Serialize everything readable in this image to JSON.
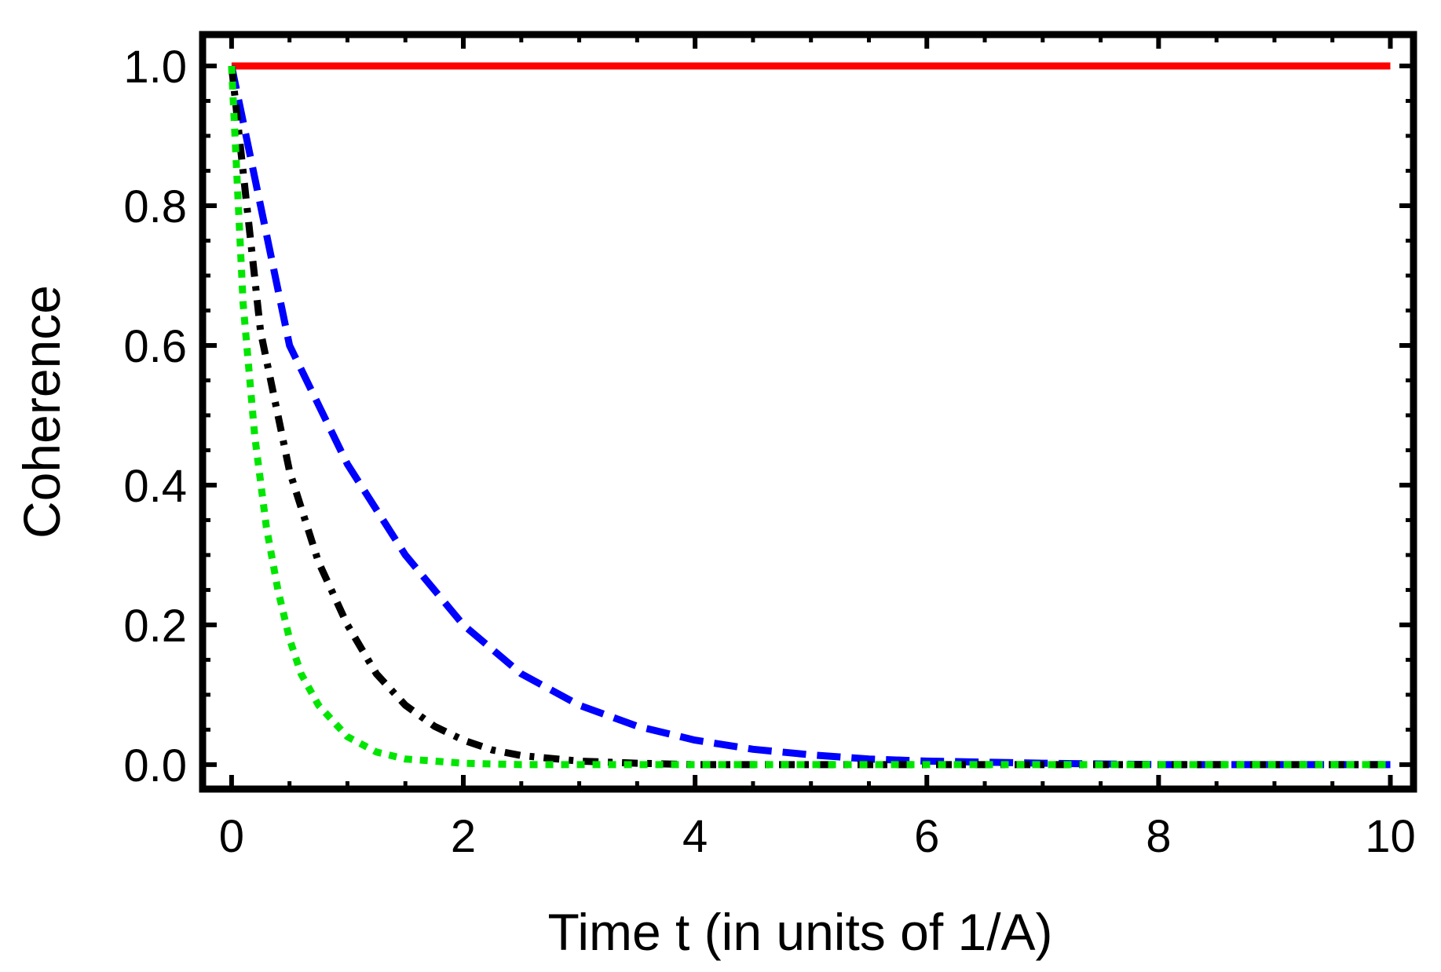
{
  "chart_data": {
    "type": "line",
    "title": "",
    "xlabel": "Time t (in units of 1/A)",
    "ylabel": "Coherence",
    "xlim": [
      -0.25,
      10.2
    ],
    "ylim": [
      -0.035,
      1.045
    ],
    "xticks": [
      0,
      2,
      4,
      6,
      8,
      10
    ],
    "xtick_labels": [
      "0",
      "2",
      "4",
      "6",
      "8",
      "10"
    ],
    "yticks": [
      0.0,
      0.2,
      0.4,
      0.6,
      0.8,
      1.0
    ],
    "ytick_labels": [
      "0.0",
      "0.2",
      "0.4",
      "0.6",
      "0.8",
      "1.0"
    ],
    "grid": false,
    "legend": "none",
    "series": [
      {
        "color": "#ff0000",
        "style": "solid",
        "x": [
          0,
          10
        ],
        "y": [
          1.0,
          1.0
        ]
      },
      {
        "color": "#0000ff",
        "style": "dashed",
        "x": [
          0,
          0.5,
          1,
          1.5,
          2,
          2.5,
          3,
          3.5,
          4,
          4.5,
          5,
          5.5,
          6,
          7,
          8,
          9,
          10
        ],
        "y": [
          1.0,
          0.6,
          0.43,
          0.3,
          0.2,
          0.13,
          0.085,
          0.055,
          0.035,
          0.022,
          0.014,
          0.008,
          0.005,
          0.002,
          0.0,
          0.0,
          0.0
        ]
      },
      {
        "color": "#000000",
        "style": "dashdot",
        "x": [
          0,
          0.25,
          0.5,
          0.75,
          1,
          1.25,
          1.5,
          1.75,
          2,
          2.25,
          2.5,
          3,
          3.5,
          4,
          5,
          6,
          7,
          8,
          9,
          10
        ],
        "y": [
          1.0,
          0.62,
          0.42,
          0.29,
          0.2,
          0.13,
          0.085,
          0.055,
          0.035,
          0.021,
          0.013,
          0.005,
          0.002,
          0.0,
          0.0,
          0.0,
          0.0,
          0.0,
          0.0,
          0.0
        ]
      },
      {
        "color": "#00e600",
        "style": "dotted",
        "x": [
          0,
          0.1,
          0.2,
          0.3,
          0.4,
          0.5,
          0.6,
          0.75,
          1,
          1.25,
          1.5,
          2,
          2.5,
          3,
          4,
          5,
          6,
          7,
          8,
          9,
          10
        ],
        "y": [
          1.0,
          0.66,
          0.47,
          0.34,
          0.25,
          0.18,
          0.13,
          0.085,
          0.04,
          0.018,
          0.008,
          0.002,
          0.0,
          0.0,
          0.0,
          0.0,
          0.0,
          0.0,
          0.0,
          0.0,
          0.0
        ]
      }
    ]
  }
}
